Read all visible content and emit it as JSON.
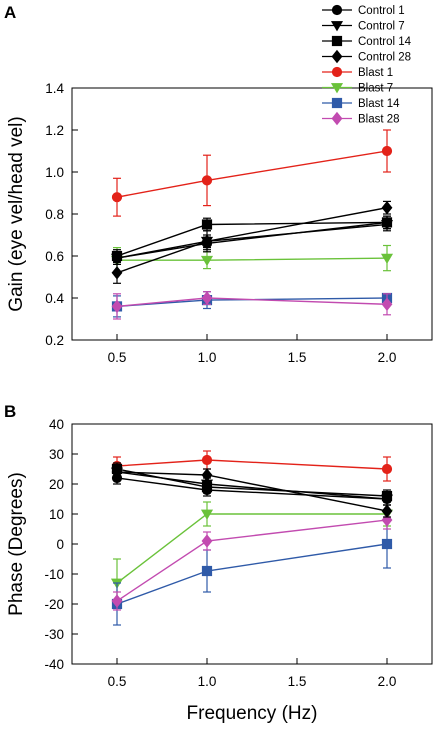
{
  "panels": [
    {
      "label": "A"
    },
    {
      "label": "B"
    }
  ],
  "chart_data": [
    {
      "type": "line",
      "panel": "A",
      "ylabel": "Gain (eye vel/head vel)",
      "xlabel": "",
      "x": [
        0.5,
        1.0,
        2.0
      ],
      "xlim": [
        0.25,
        2.25
      ],
      "ylim": [
        0.2,
        1.4
      ],
      "xticks": [
        "0.5",
        "1.0",
        "1.5",
        "2.0"
      ],
      "yticks": [
        "0.2",
        "0.4",
        "0.6",
        "0.8",
        "1.0",
        "1.2",
        "1.4"
      ],
      "grid": false,
      "legend_position": "top-right",
      "series": [
        {
          "name": "Control 1",
          "color": "#000000",
          "marker": "circle",
          "values": [
            0.59,
            0.66,
            0.76
          ],
          "errors": [
            0.03,
            0.03,
            0.03
          ]
        },
        {
          "name": "Control 7",
          "color": "#000000",
          "marker": "triangle-down",
          "values": [
            0.59,
            0.67,
            0.75
          ],
          "errors": [
            0.03,
            0.03,
            0.03
          ]
        },
        {
          "name": "Control 14",
          "color": "#000000",
          "marker": "square",
          "values": [
            0.6,
            0.75,
            0.76
          ],
          "errors": [
            0.03,
            0.03,
            0.03
          ]
        },
        {
          "name": "Control 28",
          "color": "#000000",
          "marker": "diamond",
          "values": [
            0.52,
            0.67,
            0.83
          ],
          "errors": [
            0.05,
            0.05,
            0.03
          ]
        },
        {
          "name": "Blast 1",
          "color": "#e32219",
          "marker": "circle",
          "values": [
            0.88,
            0.96,
            1.1
          ],
          "errors": [
            0.09,
            0.12,
            0.1
          ]
        },
        {
          "name": "Blast 7",
          "color": "#6ac23a",
          "marker": "triangle-down",
          "values": [
            0.58,
            0.58,
            0.59
          ],
          "errors": [
            0.06,
            0.04,
            0.06
          ]
        },
        {
          "name": "Blast 14",
          "color": "#2f5aa8",
          "marker": "square",
          "values": [
            0.36,
            0.39,
            0.4
          ],
          "errors": [
            0.05,
            0.04,
            0.02
          ]
        },
        {
          "name": "Blast 28",
          "color": "#c24bb0",
          "marker": "diamond",
          "values": [
            0.36,
            0.4,
            0.37
          ],
          "errors": [
            0.06,
            0.03,
            0.05
          ]
        }
      ]
    },
    {
      "type": "line",
      "panel": "B",
      "ylabel": "Phase (Degrees)",
      "xlabel": "Frequency (Hz)",
      "x": [
        0.5,
        1.0,
        2.0
      ],
      "xlim": [
        0.25,
        2.25
      ],
      "ylim": [
        -40,
        40
      ],
      "xticks": [
        "0.5",
        "1.0",
        "1.5",
        "2.0"
      ],
      "yticks": [
        "-40",
        "-30",
        "-20",
        "-10",
        "0",
        "10",
        "20",
        "30",
        "40"
      ],
      "grid": false,
      "series": [
        {
          "name": "Control 1",
          "color": "#000000",
          "marker": "circle",
          "values": [
            22,
            18,
            15
          ],
          "errors": [
            2,
            2,
            2
          ]
        },
        {
          "name": "Control 7",
          "color": "#000000",
          "marker": "triangle-down",
          "values": [
            24,
            20,
            15
          ],
          "errors": [
            2,
            2,
            2
          ]
        },
        {
          "name": "Control 14",
          "color": "#000000",
          "marker": "square",
          "values": [
            25,
            19,
            16
          ],
          "errors": [
            2,
            2,
            2
          ]
        },
        {
          "name": "Control 28",
          "color": "#000000",
          "marker": "diamond",
          "values": [
            24,
            23,
            11
          ],
          "errors": [
            2,
            2,
            2
          ]
        },
        {
          "name": "Blast 1",
          "color": "#e32219",
          "marker": "circle",
          "values": [
            26,
            28,
            25
          ],
          "errors": [
            3,
            3,
            4
          ]
        },
        {
          "name": "Blast 7",
          "color": "#6ac23a",
          "marker": "triangle-down",
          "values": [
            -13,
            10,
            10
          ],
          "errors": [
            8,
            4,
            4
          ]
        },
        {
          "name": "Blast 14",
          "color": "#2f5aa8",
          "marker": "square",
          "values": [
            -20,
            -9,
            0
          ],
          "errors": [
            7,
            7,
            8
          ]
        },
        {
          "name": "Blast 28",
          "color": "#c24bb0",
          "marker": "diamond",
          "values": [
            -19,
            1,
            8
          ],
          "errors": [
            3,
            3,
            3
          ]
        }
      ]
    }
  ]
}
